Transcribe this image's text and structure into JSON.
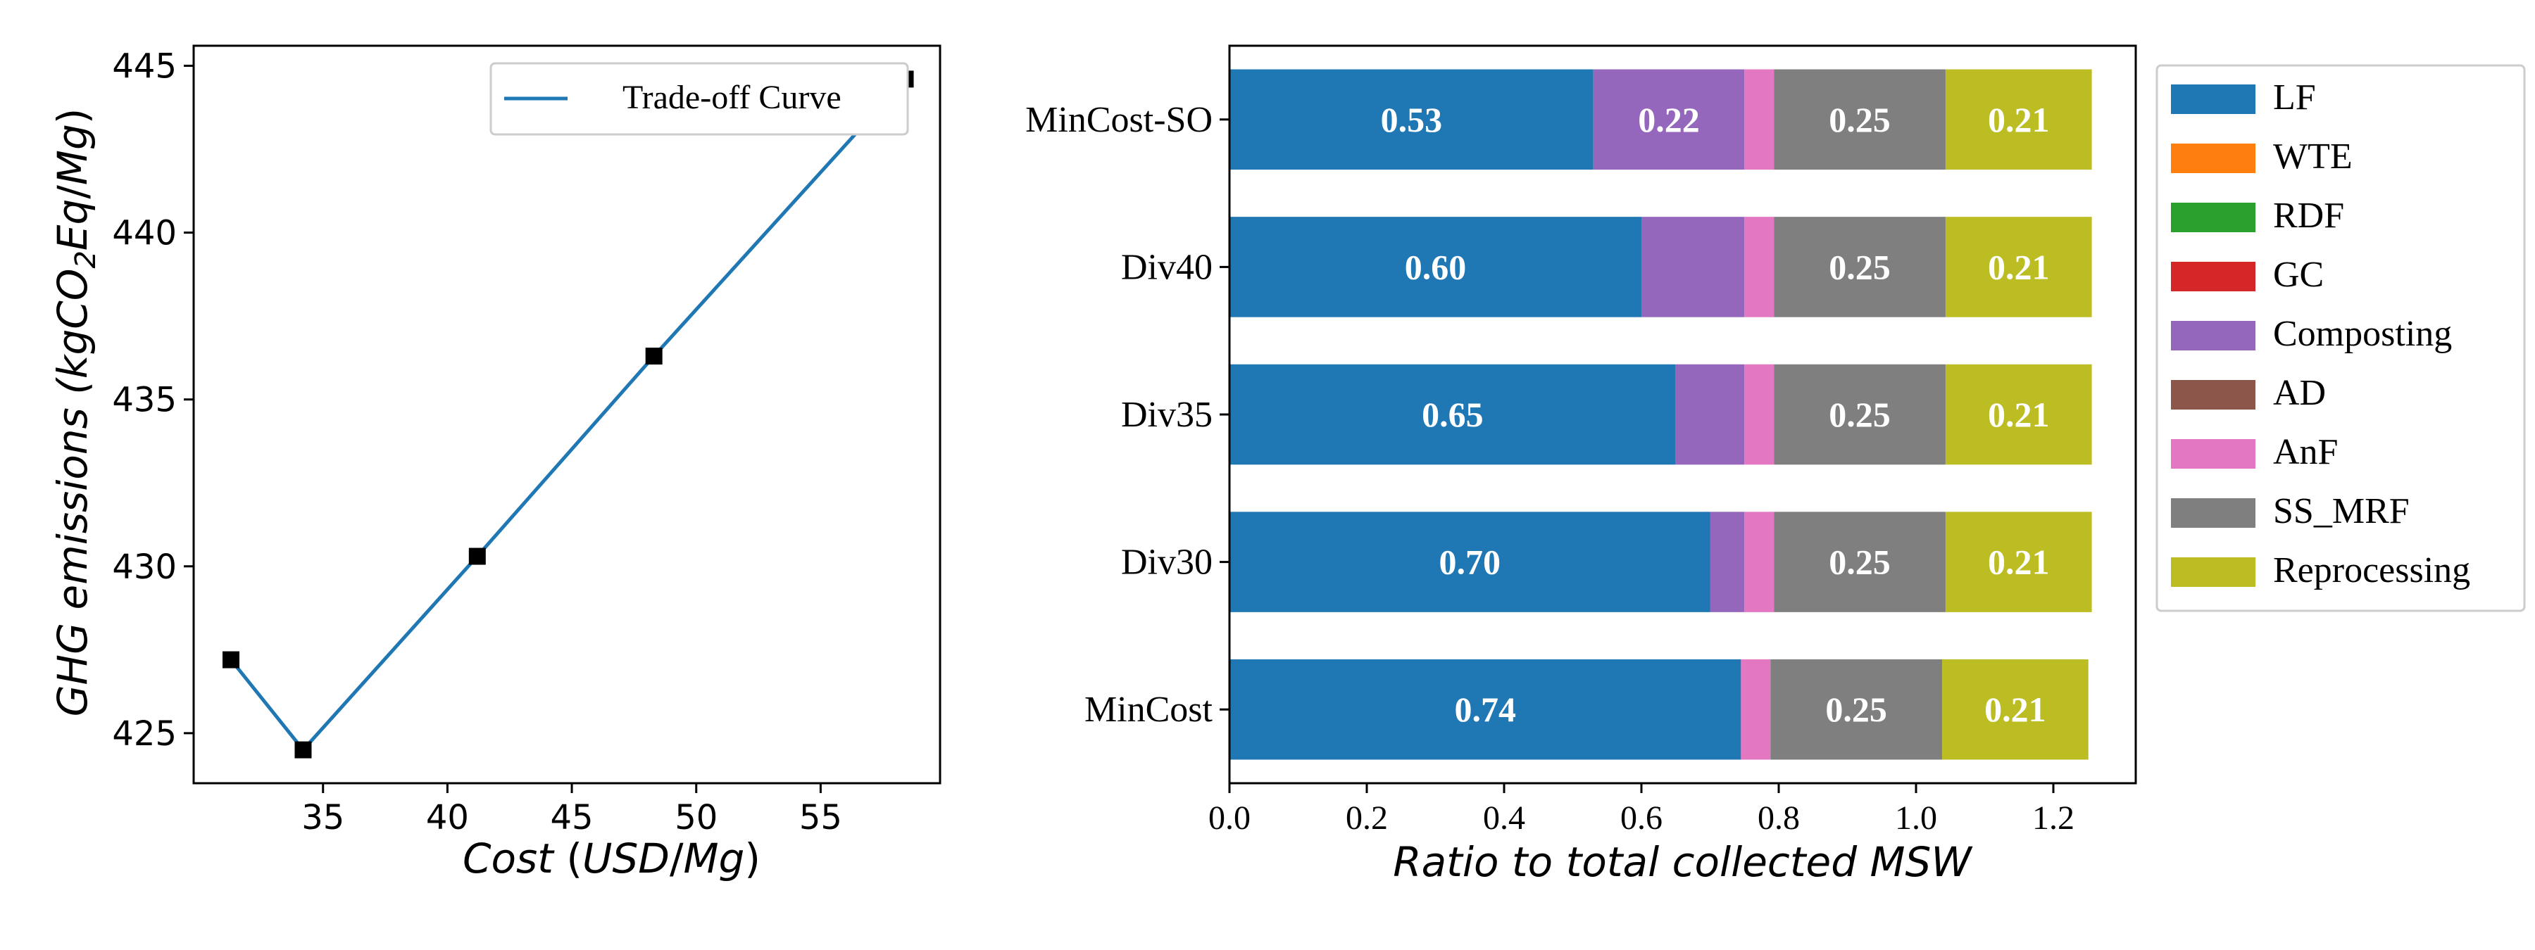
{
  "chart_data": [
    {
      "type": "line",
      "xlabel": "Cost (USD/Mg)",
      "ylabel": "GHG emissions (kgCO2Eq/Mg)",
      "xlim": [
        29.8,
        59.8
      ],
      "ylim": [
        423.5,
        445.6
      ],
      "xticks": [
        35,
        40,
        45,
        50,
        55
      ],
      "yticks": [
        425,
        430,
        435,
        440,
        445
      ],
      "series": [
        {
          "name": "Trade-off Curve",
          "color": "#1f77b4",
          "x": [
            31.3,
            34.2,
            41.2,
            48.3,
            58.4
          ],
          "y": [
            427.2,
            424.5,
            430.3,
            436.3,
            444.6
          ]
        }
      ],
      "markers": {
        "shape": "square",
        "color": "#000000"
      },
      "legend": {
        "position": "top-right",
        "entries": [
          "Trade-off Curve"
        ]
      },
      "grid": false
    },
    {
      "type": "bar",
      "orientation": "horizontal",
      "stacked": true,
      "xlabel": "Ratio to total collected MSW",
      "xlim": [
        0,
        1.32
      ],
      "xticks": [
        "0.0",
        "0.2",
        "0.4",
        "0.6",
        "0.8",
        "1.0",
        "1.2"
      ],
      "categories": [
        "MinCost-SO",
        "Div40",
        "Div35",
        "Div30",
        "MinCost"
      ],
      "series": [
        {
          "name": "LF",
          "color": "#1f77b4",
          "values": [
            0.53,
            0.6,
            0.65,
            0.7,
            0.745
          ],
          "labels": [
            "0.53",
            "0.60",
            "0.65",
            "0.70",
            "0.74"
          ]
        },
        {
          "name": "WTE",
          "color": "#ff7f0e",
          "values": [
            0,
            0,
            0,
            0,
            0
          ],
          "labels": [
            "",
            "",
            "",
            "",
            ""
          ]
        },
        {
          "name": "RDF",
          "color": "#2ca02c",
          "values": [
            0,
            0,
            0,
            0,
            0
          ],
          "labels": [
            "",
            "",
            "",
            "",
            ""
          ]
        },
        {
          "name": "GC",
          "color": "#d62728",
          "values": [
            0,
            0,
            0,
            0,
            0
          ],
          "labels": [
            "",
            "",
            "",
            "",
            ""
          ]
        },
        {
          "name": "Composting",
          "color": "#9467bd",
          "values": [
            0.22,
            0.15,
            0.1,
            0.05,
            0
          ],
          "labels": [
            "0.22",
            "",
            "",
            "",
            ""
          ]
        },
        {
          "name": "AD",
          "color": "#8c564b",
          "values": [
            0,
            0,
            0,
            0,
            0
          ],
          "labels": [
            "",
            "",
            "",
            "",
            ""
          ]
        },
        {
          "name": "AnF",
          "color": "#e377c2",
          "values": [
            0.043,
            0.043,
            0.043,
            0.043,
            0.043
          ],
          "labels": [
            "",
            "",
            "",
            "",
            ""
          ]
        },
        {
          "name": "SS_MRF",
          "color": "#7f7f7f",
          "values": [
            0.25,
            0.25,
            0.25,
            0.25,
            0.25
          ],
          "labels": [
            "0.25",
            "0.25",
            "0.25",
            "0.25",
            "0.25"
          ]
        },
        {
          "name": "Reprocessing",
          "color": "#bcbd22",
          "values": [
            0.213,
            0.213,
            0.213,
            0.213,
            0.213
          ],
          "labels": [
            "0.21",
            "0.21",
            "0.21",
            "0.21",
            "0.21"
          ]
        }
      ],
      "legend": {
        "position": "outside-right",
        "entries": [
          "LF",
          "WTE",
          "RDF",
          "GC",
          "Composting",
          "AD",
          "AnF",
          "SS_MRF",
          "Reprocessing"
        ]
      },
      "grid": false
    }
  ]
}
